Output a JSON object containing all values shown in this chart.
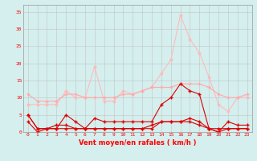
{
  "x": [
    0,
    1,
    2,
    3,
    4,
    5,
    6,
    7,
    8,
    9,
    10,
    11,
    12,
    13,
    14,
    15,
    16,
    17,
    18,
    19,
    20,
    21,
    22,
    23
  ],
  "line1": [
    3,
    0,
    1,
    1,
    5,
    3,
    1,
    4,
    3,
    3,
    3,
    3,
    3,
    3,
    8,
    10,
    14,
    12,
    11,
    1,
    0,
    3,
    2,
    2
  ],
  "line2": [
    11,
    9,
    9,
    9,
    11,
    11,
    10,
    10,
    10,
    10,
    11,
    11,
    12,
    13,
    13,
    13,
    14,
    14,
    14,
    13,
    11,
    10,
    10,
    11
  ],
  "line3": [
    5,
    1,
    1,
    1,
    1,
    1,
    1,
    1,
    1,
    1,
    1,
    1,
    1,
    1,
    3,
    3,
    3,
    4,
    3,
    1,
    1,
    1,
    1,
    1
  ],
  "line4": [
    5,
    1,
    1,
    2,
    2,
    1,
    1,
    1,
    1,
    1,
    1,
    1,
    1,
    2,
    3,
    3,
    3,
    3,
    2,
    1,
    0,
    1,
    1,
    1
  ],
  "line5": [
    8,
    8,
    8,
    8,
    12,
    10,
    10,
    19,
    9,
    9,
    12,
    11,
    12,
    13,
    17,
    21,
    34,
    27,
    23,
    16,
    8,
    6,
    10,
    10
  ],
  "bg_color": "#d5eeee",
  "grid_color": "#bbbbbb",
  "line1_color": "#dd0000",
  "line2_color": "#ffaaaa",
  "line3_color": "#dd0000",
  "line4_color": "#dd0000",
  "line5_color": "#ffbbbb",
  "xlabel": "Vent moyen/en rafales ( km/h )",
  "ylim": [
    0,
    37
  ],
  "xlim": [
    -0.5,
    23.5
  ],
  "yticks": [
    0,
    5,
    10,
    15,
    20,
    25,
    30,
    35
  ],
  "xticks": [
    0,
    1,
    2,
    3,
    4,
    5,
    6,
    7,
    8,
    9,
    10,
    11,
    12,
    13,
    14,
    15,
    16,
    17,
    18,
    19,
    20,
    21,
    22,
    23
  ]
}
